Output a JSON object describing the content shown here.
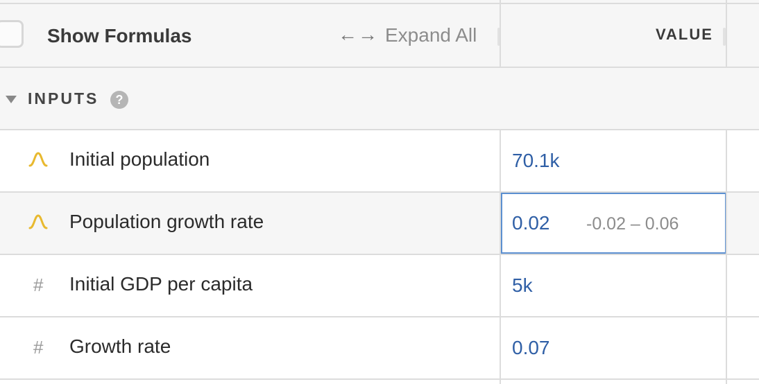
{
  "header": {
    "show_formulas_label": "Show Formulas",
    "expand_arrows": "←→",
    "expand_all_label": "Expand All",
    "value_column_label": "VALUE"
  },
  "section": {
    "title": "INPUTS",
    "help_glyph": "?"
  },
  "rows": [
    {
      "icon": "distribution-icon",
      "label": "Initial population",
      "value": "70.1k",
      "range": ""
    },
    {
      "icon": "distribution-icon",
      "label": "Population growth rate",
      "value": "0.02",
      "range": "-0.02 – 0.06"
    },
    {
      "icon": "hash-icon",
      "label": "Initial GDP per capita",
      "value": "5k",
      "range": ""
    },
    {
      "icon": "hash-icon",
      "label": "Growth rate",
      "value": "0.07",
      "range": ""
    }
  ],
  "colors": {
    "value_text": "#2f5fa6",
    "distribution_icon": "#e8b92f",
    "selection_border": "#5b8fd0"
  }
}
